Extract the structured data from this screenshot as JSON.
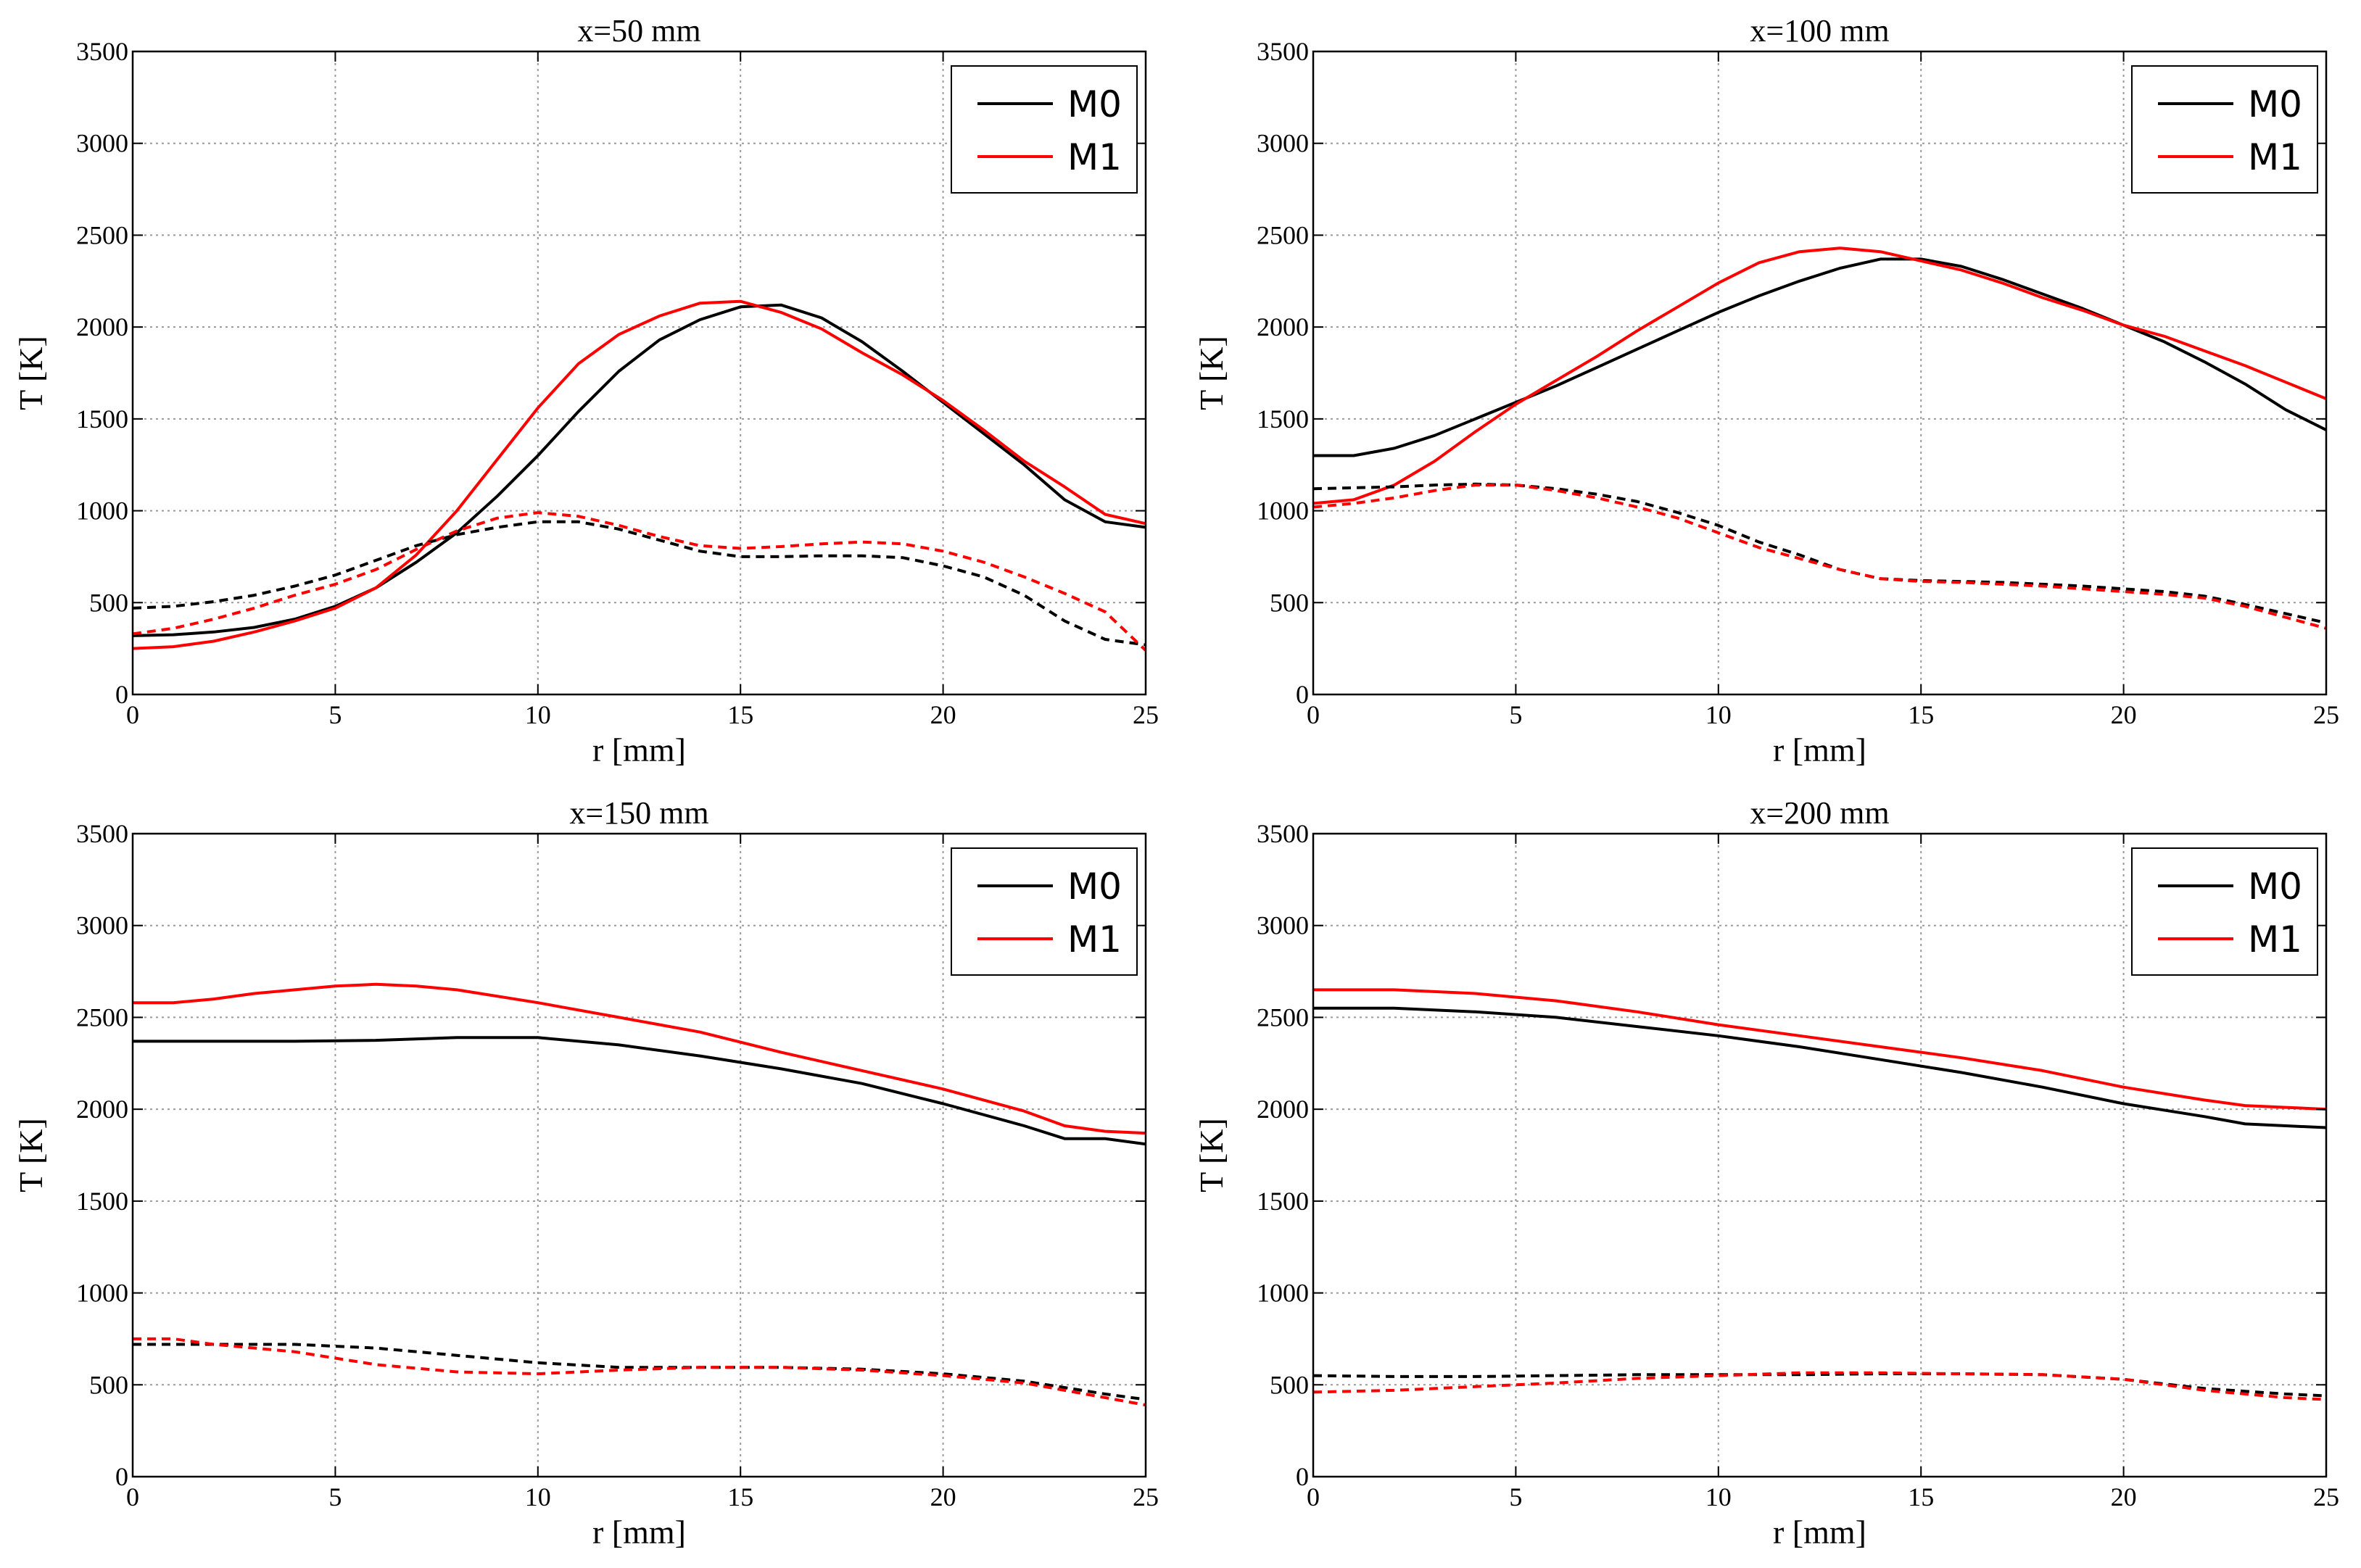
{
  "figure": {
    "legend_position": "top-right"
  },
  "chart_data": [
    {
      "type": "line",
      "title": "x=50 mm",
      "xlabel": "r [mm]",
      "ylabel": "T [K]",
      "xlim": [
        0,
        25
      ],
      "ylim": [
        0,
        3500
      ],
      "xticks": [
        0,
        5,
        10,
        15,
        20,
        25
      ],
      "yticks": [
        0,
        500,
        1000,
        1500,
        2000,
        2500,
        3000,
        3500
      ],
      "grid": true,
      "legend": [
        "M0",
        "M1"
      ],
      "series": [
        {
          "name": "M0",
          "color": "#000000",
          "style": "solid",
          "x": [
            0,
            1,
            2,
            3,
            4,
            5,
            6,
            7,
            8,
            9,
            10,
            11,
            12,
            13,
            14,
            15,
            16,
            17,
            18,
            19,
            20,
            21,
            22,
            23,
            24,
            25
          ],
          "y": [
            320,
            325,
            340,
            365,
            410,
            480,
            580,
            720,
            880,
            1080,
            1300,
            1540,
            1760,
            1930,
            2040,
            2110,
            2120,
            2050,
            1920,
            1760,
            1590,
            1420,
            1250,
            1060,
            940,
            910
          ]
        },
        {
          "name": "M1",
          "color": "#ff0000",
          "style": "solid",
          "x": [
            0,
            1,
            2,
            3,
            4,
            5,
            6,
            7,
            8,
            9,
            10,
            11,
            12,
            13,
            14,
            15,
            16,
            17,
            18,
            19,
            20,
            21,
            22,
            23,
            24,
            25
          ],
          "y": [
            250,
            260,
            290,
            340,
            400,
            470,
            580,
            760,
            1000,
            1280,
            1560,
            1800,
            1960,
            2060,
            2130,
            2140,
            2080,
            1990,
            1860,
            1740,
            1600,
            1440,
            1270,
            1130,
            980,
            930
          ]
        },
        {
          "name": "M0 (dashed)",
          "color": "#000000",
          "style": "dashed",
          "x": [
            0,
            1,
            2,
            3,
            4,
            5,
            6,
            7,
            8,
            9,
            10,
            11,
            12,
            13,
            14,
            15,
            16,
            17,
            18,
            19,
            20,
            21,
            22,
            23,
            24,
            25
          ],
          "y": [
            470,
            480,
            505,
            540,
            590,
            650,
            730,
            810,
            870,
            910,
            940,
            940,
            900,
            840,
            780,
            750,
            750,
            755,
            755,
            745,
            700,
            640,
            540,
            400,
            300,
            270
          ]
        },
        {
          "name": "M1 (dashed)",
          "color": "#ff0000",
          "style": "dashed",
          "x": [
            0,
            1,
            2,
            3,
            4,
            5,
            6,
            7,
            8,
            9,
            10,
            11,
            12,
            13,
            14,
            15,
            16,
            17,
            18,
            19,
            20,
            21,
            22,
            23,
            24,
            25
          ],
          "y": [
            330,
            360,
            410,
            470,
            540,
            600,
            680,
            790,
            890,
            960,
            990,
            970,
            920,
            860,
            810,
            795,
            805,
            820,
            830,
            820,
            780,
            720,
            640,
            550,
            450,
            240
          ]
        }
      ]
    },
    {
      "type": "line",
      "title": "x=100 mm",
      "xlabel": "r [mm]",
      "ylabel": "T [K]",
      "xlim": [
        0,
        25
      ],
      "ylim": [
        0,
        3500
      ],
      "xticks": [
        0,
        5,
        10,
        15,
        20,
        25
      ],
      "yticks": [
        0,
        500,
        1000,
        1500,
        2000,
        2500,
        3000,
        3500
      ],
      "grid": true,
      "legend": [
        "M0",
        "M1"
      ],
      "series": [
        {
          "name": "M0",
          "color": "#000000",
          "style": "solid",
          "x": [
            0,
            1,
            2,
            3,
            4,
            5,
            6,
            7,
            8,
            9,
            10,
            11,
            12,
            13,
            14,
            15,
            16,
            17,
            18,
            19,
            20,
            21,
            22,
            23,
            24,
            25
          ],
          "y": [
            1300,
            1300,
            1340,
            1410,
            1500,
            1590,
            1680,
            1780,
            1880,
            1980,
            2080,
            2170,
            2250,
            2320,
            2370,
            2370,
            2330,
            2260,
            2180,
            2100,
            2010,
            1920,
            1810,
            1690,
            1550,
            1440
          ]
        },
        {
          "name": "M1",
          "color": "#ff0000",
          "style": "solid",
          "x": [
            0,
            1,
            2,
            3,
            4,
            5,
            6,
            7,
            8,
            9,
            10,
            11,
            12,
            13,
            14,
            15,
            16,
            17,
            18,
            19,
            20,
            21,
            22,
            23,
            24,
            25
          ],
          "y": [
            1040,
            1060,
            1140,
            1270,
            1430,
            1580,
            1710,
            1840,
            1980,
            2110,
            2240,
            2350,
            2410,
            2430,
            2410,
            2360,
            2310,
            2240,
            2160,
            2090,
            2010,
            1950,
            1870,
            1790,
            1700,
            1610
          ]
        },
        {
          "name": "M0 (dashed)",
          "color": "#000000",
          "style": "dashed",
          "x": [
            0,
            1,
            2,
            3,
            4,
            5,
            6,
            7,
            8,
            9,
            10,
            11,
            12,
            13,
            14,
            15,
            16,
            17,
            18,
            19,
            20,
            21,
            22,
            23,
            24,
            25
          ],
          "y": [
            1120,
            1125,
            1130,
            1140,
            1145,
            1140,
            1120,
            1090,
            1050,
            990,
            920,
            830,
            760,
            680,
            630,
            620,
            615,
            610,
            600,
            590,
            575,
            560,
            535,
            490,
            440,
            390
          ]
        },
        {
          "name": "M1 (dashed)",
          "color": "#ff0000",
          "style": "dashed",
          "x": [
            0,
            1,
            2,
            3,
            4,
            5,
            6,
            7,
            8,
            9,
            10,
            11,
            12,
            13,
            14,
            15,
            16,
            17,
            18,
            19,
            20,
            21,
            22,
            23,
            24,
            25
          ],
          "y": [
            1020,
            1040,
            1070,
            1110,
            1140,
            1140,
            1110,
            1070,
            1020,
            960,
            880,
            800,
            740,
            680,
            630,
            615,
            610,
            600,
            590,
            575,
            560,
            545,
            525,
            480,
            420,
            360
          ]
        }
      ]
    },
    {
      "type": "line",
      "title": "x=150 mm",
      "xlabel": "r [mm]",
      "ylabel": "T [K]",
      "xlim": [
        0,
        25
      ],
      "ylim": [
        0,
        3500
      ],
      "xticks": [
        0,
        5,
        10,
        15,
        20,
        25
      ],
      "yticks": [
        0,
        500,
        1000,
        1500,
        2000,
        2500,
        3000,
        3500
      ],
      "grid": true,
      "legend": [
        "M0",
        "M1"
      ],
      "series": [
        {
          "name": "M0",
          "color": "#000000",
          "style": "solid",
          "x": [
            0,
            2,
            4,
            6,
            8,
            10,
            12,
            14,
            16,
            18,
            20,
            22,
            23,
            24,
            25
          ],
          "y": [
            2370,
            2370,
            2370,
            2375,
            2390,
            2390,
            2350,
            2290,
            2220,
            2140,
            2030,
            1910,
            1840,
            1840,
            1810
          ]
        },
        {
          "name": "M1",
          "color": "#ff0000",
          "style": "solid",
          "x": [
            0,
            1,
            2,
            3,
            4,
            5,
            6,
            7,
            8,
            10,
            12,
            14,
            16,
            18,
            20,
            22,
            23,
            24,
            25
          ],
          "y": [
            2580,
            2580,
            2600,
            2630,
            2650,
            2670,
            2680,
            2670,
            2650,
            2580,
            2500,
            2420,
            2310,
            2210,
            2110,
            1990,
            1910,
            1880,
            1870
          ]
        },
        {
          "name": "M0 (dashed)",
          "color": "#000000",
          "style": "dashed",
          "x": [
            0,
            2,
            4,
            6,
            8,
            10,
            12,
            14,
            16,
            18,
            20,
            22,
            24,
            25
          ],
          "y": [
            720,
            720,
            720,
            700,
            660,
            620,
            595,
            595,
            595,
            585,
            560,
            520,
            450,
            420
          ]
        },
        {
          "name": "M1 (dashed)",
          "color": "#ff0000",
          "style": "dashed",
          "x": [
            0,
            1,
            2,
            4,
            6,
            8,
            10,
            12,
            14,
            16,
            18,
            20,
            22,
            24,
            25
          ],
          "y": [
            750,
            750,
            720,
            680,
            610,
            570,
            560,
            580,
            595,
            595,
            580,
            550,
            510,
            430,
            390
          ]
        }
      ]
    },
    {
      "type": "line",
      "title": "x=200 mm",
      "xlabel": "r [mm]",
      "ylabel": "T [K]",
      "xlim": [
        0,
        25
      ],
      "ylim": [
        0,
        3500
      ],
      "xticks": [
        0,
        5,
        10,
        15,
        20,
        25
      ],
      "yticks": [
        0,
        500,
        1000,
        1500,
        2000,
        2500,
        3000,
        3500
      ],
      "grid": true,
      "legend": [
        "M0",
        "M1"
      ],
      "series": [
        {
          "name": "M0",
          "color": "#000000",
          "style": "solid",
          "x": [
            0,
            2,
            4,
            6,
            8,
            10,
            12,
            14,
            16,
            18,
            20,
            22,
            23,
            24,
            25
          ],
          "y": [
            2550,
            2550,
            2530,
            2500,
            2450,
            2400,
            2340,
            2270,
            2200,
            2120,
            2030,
            1960,
            1920,
            1910,
            1900
          ]
        },
        {
          "name": "M1",
          "color": "#ff0000",
          "style": "solid",
          "x": [
            0,
            2,
            4,
            6,
            8,
            10,
            12,
            14,
            16,
            18,
            20,
            22,
            23,
            24,
            25
          ],
          "y": [
            2650,
            2650,
            2630,
            2590,
            2530,
            2460,
            2400,
            2340,
            2280,
            2210,
            2120,
            2050,
            2020,
            2010,
            2000
          ]
        },
        {
          "name": "M0 (dashed)",
          "color": "#000000",
          "style": "dashed",
          "x": [
            0,
            2,
            4,
            6,
            8,
            10,
            12,
            14,
            16,
            18,
            20,
            22,
            24,
            25
          ],
          "y": [
            550,
            545,
            545,
            550,
            555,
            555,
            555,
            560,
            560,
            555,
            530,
            480,
            450,
            440
          ]
        },
        {
          "name": "M1 (dashed)",
          "color": "#ff0000",
          "style": "dashed",
          "x": [
            0,
            2,
            4,
            6,
            8,
            10,
            12,
            14,
            16,
            18,
            20,
            22,
            24,
            25
          ],
          "y": [
            460,
            470,
            490,
            510,
            535,
            550,
            565,
            565,
            560,
            555,
            530,
            470,
            430,
            420
          ]
        }
      ]
    }
  ]
}
